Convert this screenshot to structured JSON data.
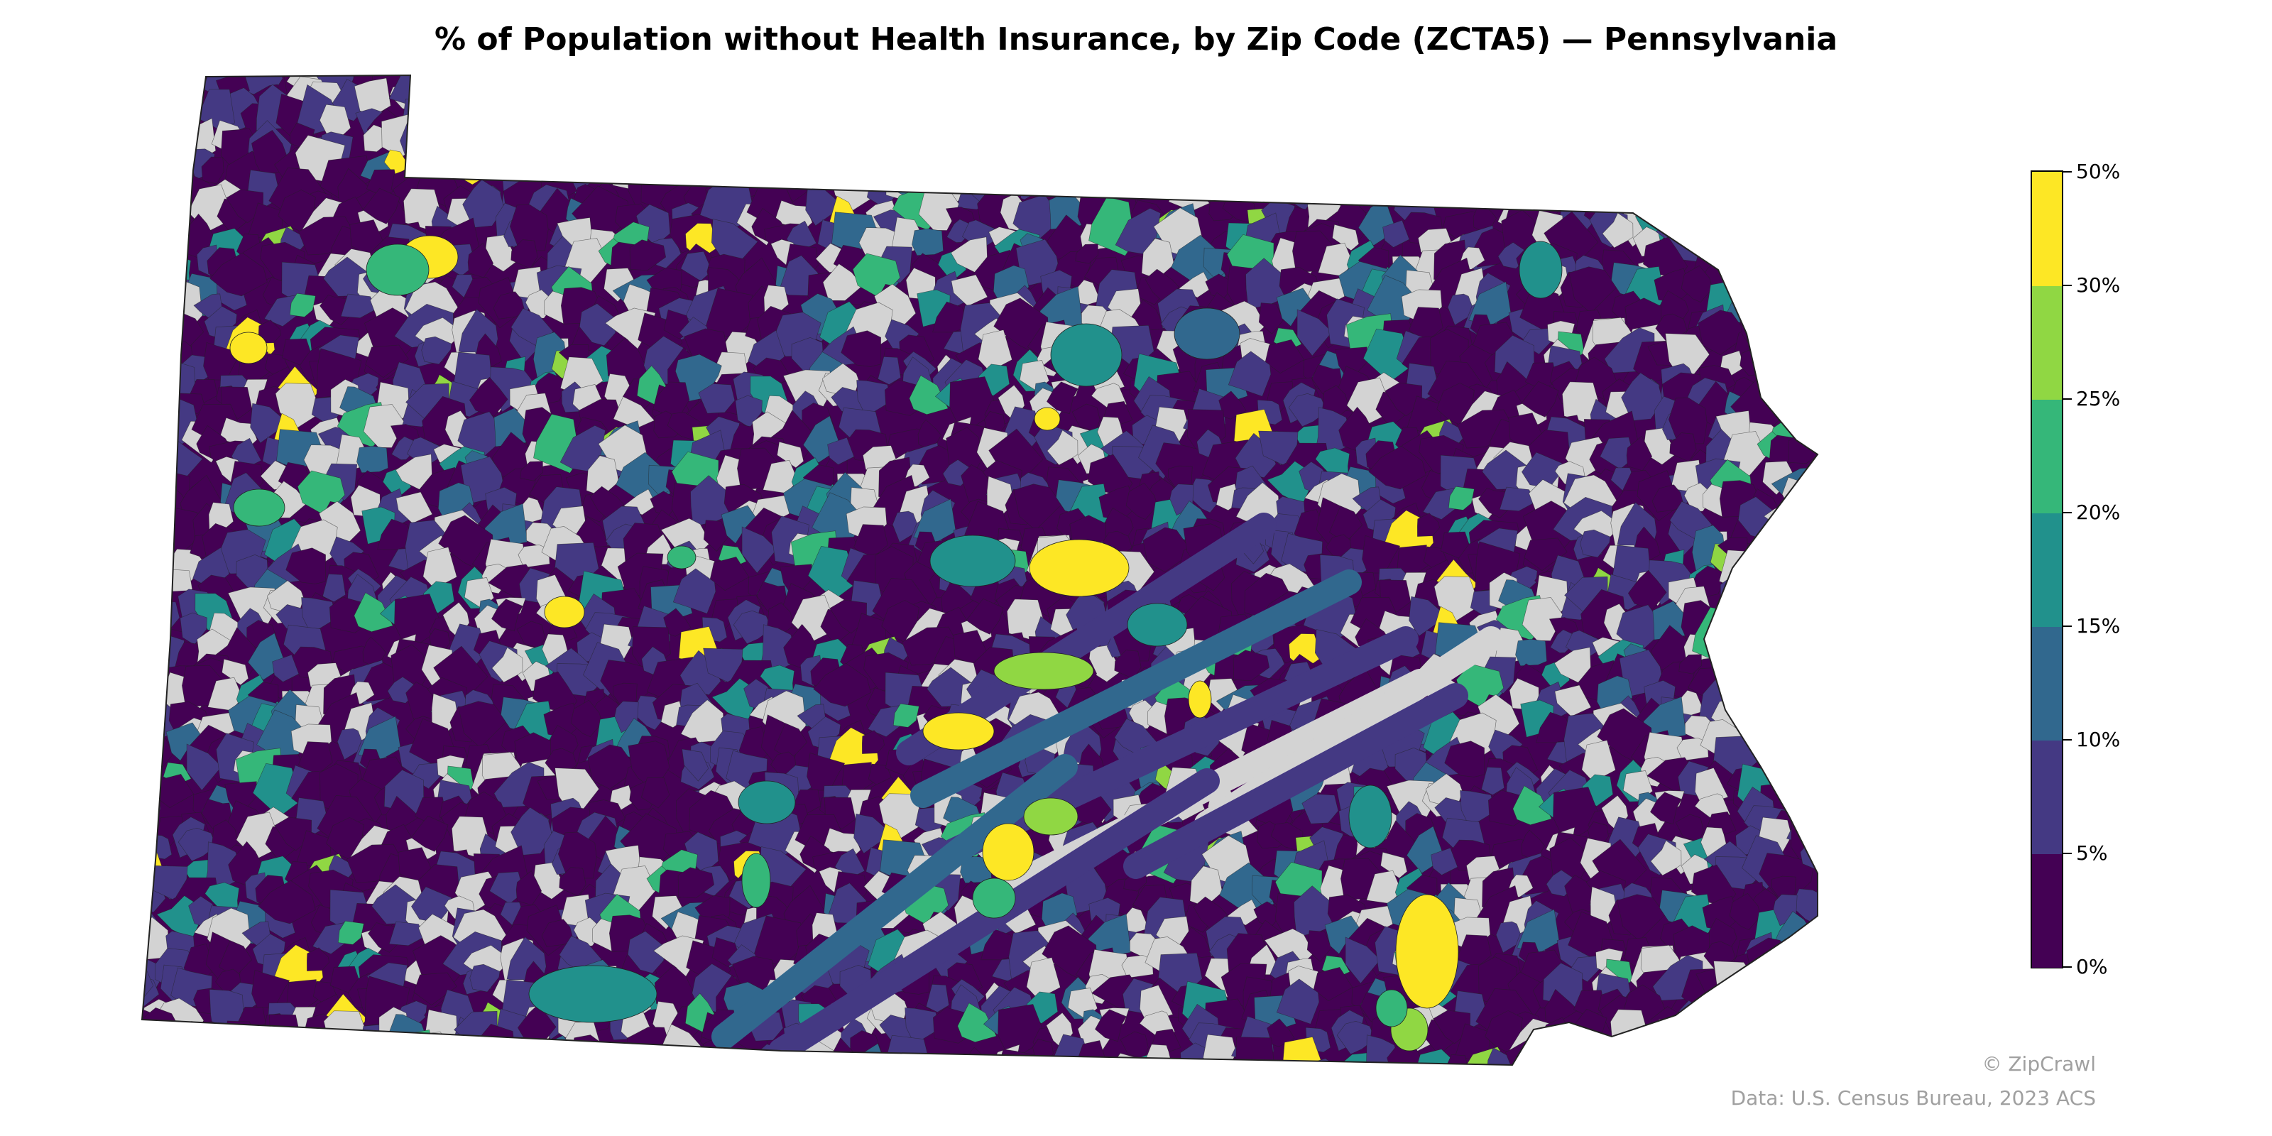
{
  "title": "% of Population without Health Insurance, by Zip Code (ZCTA5) — Pennsylvania",
  "legend": {
    "bins": [
      {
        "min": 0,
        "max": 5,
        "color": "#440154"
      },
      {
        "min": 5,
        "max": 10,
        "color": "#443983"
      },
      {
        "min": 10,
        "max": 15,
        "color": "#31688e"
      },
      {
        "min": 15,
        "max": 20,
        "color": "#21918c"
      },
      {
        "min": 20,
        "max": 25,
        "color": "#35b779"
      },
      {
        "min": 25,
        "max": 30,
        "color": "#90d743"
      },
      {
        "min": 30,
        "max": 50,
        "color": "#fde725"
      }
    ],
    "tick_labels": [
      "0%",
      "5%",
      "10%",
      "15%",
      "20%",
      "25%",
      "30%",
      "50%"
    ]
  },
  "no_data_color": "#d3d3d3",
  "credit": "© ZipCrawl",
  "source": "Data: U.S. Census Bureau, 2023 ACS",
  "colors": {
    "border": "#222222"
  }
}
